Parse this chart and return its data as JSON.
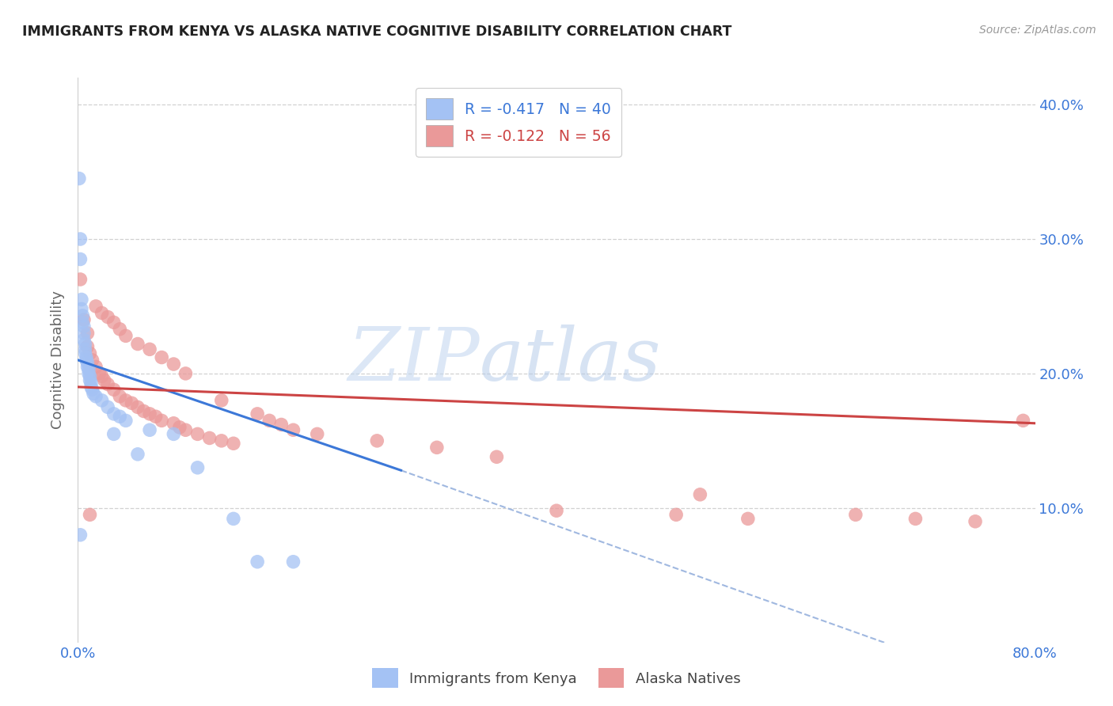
{
  "title": "IMMIGRANTS FROM KENYA VS ALASKA NATIVE COGNITIVE DISABILITY CORRELATION CHART",
  "source": "Source: ZipAtlas.com",
  "ylabel": "Cognitive Disability",
  "xmin": 0.0,
  "xmax": 0.8,
  "ymin": 0.0,
  "ymax": 0.42,
  "yticks": [
    0.1,
    0.2,
    0.3,
    0.4
  ],
  "ytick_labels": [
    "10.0%",
    "20.0%",
    "30.0%",
    "40.0%"
  ],
  "watermark_big": "ZIP",
  "watermark_small": "atlas",
  "blue_color": "#a4c2f4",
  "pink_color": "#ea9999",
  "blue_scatter": [
    [
      0.001,
      0.345
    ],
    [
      0.002,
      0.3
    ],
    [
      0.002,
      0.285
    ],
    [
      0.003,
      0.255
    ],
    [
      0.003,
      0.248
    ],
    [
      0.004,
      0.243
    ],
    [
      0.004,
      0.238
    ],
    [
      0.005,
      0.235
    ],
    [
      0.005,
      0.23
    ],
    [
      0.005,
      0.225
    ],
    [
      0.006,
      0.222
    ],
    [
      0.006,
      0.218
    ],
    [
      0.006,
      0.215
    ],
    [
      0.007,
      0.212
    ],
    [
      0.007,
      0.21
    ],
    [
      0.008,
      0.208
    ],
    [
      0.008,
      0.205
    ],
    [
      0.009,
      0.203
    ],
    [
      0.009,
      0.2
    ],
    [
      0.01,
      0.198
    ],
    [
      0.01,
      0.195
    ],
    [
      0.011,
      0.193
    ],
    [
      0.011,
      0.19
    ],
    [
      0.012,
      0.188
    ],
    [
      0.013,
      0.185
    ],
    [
      0.015,
      0.183
    ],
    [
      0.02,
      0.18
    ],
    [
      0.025,
      0.175
    ],
    [
      0.03,
      0.17
    ],
    [
      0.035,
      0.168
    ],
    [
      0.04,
      0.165
    ],
    [
      0.06,
      0.158
    ],
    [
      0.08,
      0.155
    ],
    [
      0.1,
      0.13
    ],
    [
      0.13,
      0.092
    ],
    [
      0.002,
      0.08
    ],
    [
      0.03,
      0.155
    ],
    [
      0.05,
      0.14
    ],
    [
      0.15,
      0.06
    ],
    [
      0.18,
      0.06
    ]
  ],
  "pink_scatter": [
    [
      0.002,
      0.27
    ],
    [
      0.005,
      0.24
    ],
    [
      0.008,
      0.23
    ],
    [
      0.008,
      0.22
    ],
    [
      0.01,
      0.215
    ],
    [
      0.012,
      0.21
    ],
    [
      0.015,
      0.205
    ],
    [
      0.018,
      0.2
    ],
    [
      0.02,
      0.198
    ],
    [
      0.022,
      0.195
    ],
    [
      0.025,
      0.192
    ],
    [
      0.03,
      0.188
    ],
    [
      0.035,
      0.183
    ],
    [
      0.04,
      0.18
    ],
    [
      0.045,
      0.178
    ],
    [
      0.05,
      0.175
    ],
    [
      0.055,
      0.172
    ],
    [
      0.06,
      0.17
    ],
    [
      0.065,
      0.168
    ],
    [
      0.07,
      0.165
    ],
    [
      0.08,
      0.163
    ],
    [
      0.085,
      0.16
    ],
    [
      0.09,
      0.158
    ],
    [
      0.1,
      0.155
    ],
    [
      0.11,
      0.152
    ],
    [
      0.12,
      0.15
    ],
    [
      0.13,
      0.148
    ],
    [
      0.015,
      0.25
    ],
    [
      0.02,
      0.245
    ],
    [
      0.025,
      0.242
    ],
    [
      0.03,
      0.238
    ],
    [
      0.035,
      0.233
    ],
    [
      0.04,
      0.228
    ],
    [
      0.05,
      0.222
    ],
    [
      0.06,
      0.218
    ],
    [
      0.07,
      0.212
    ],
    [
      0.08,
      0.207
    ],
    [
      0.09,
      0.2
    ],
    [
      0.12,
      0.18
    ],
    [
      0.15,
      0.17
    ],
    [
      0.16,
      0.165
    ],
    [
      0.17,
      0.162
    ],
    [
      0.18,
      0.158
    ],
    [
      0.2,
      0.155
    ],
    [
      0.25,
      0.15
    ],
    [
      0.3,
      0.145
    ],
    [
      0.35,
      0.138
    ],
    [
      0.4,
      0.098
    ],
    [
      0.5,
      0.095
    ],
    [
      0.52,
      0.11
    ],
    [
      0.56,
      0.092
    ],
    [
      0.65,
      0.095
    ],
    [
      0.7,
      0.092
    ],
    [
      0.75,
      0.09
    ],
    [
      0.79,
      0.165
    ],
    [
      0.01,
      0.095
    ]
  ],
  "blue_line_x": [
    0.0,
    0.27
  ],
  "blue_line_y": [
    0.21,
    0.128
  ],
  "pink_line_x": [
    0.0,
    0.8
  ],
  "pink_line_y": [
    0.19,
    0.163
  ],
  "dashed_line_x": [
    0.27,
    0.8
  ],
  "dashed_line_y": [
    0.128,
    -0.04
  ]
}
